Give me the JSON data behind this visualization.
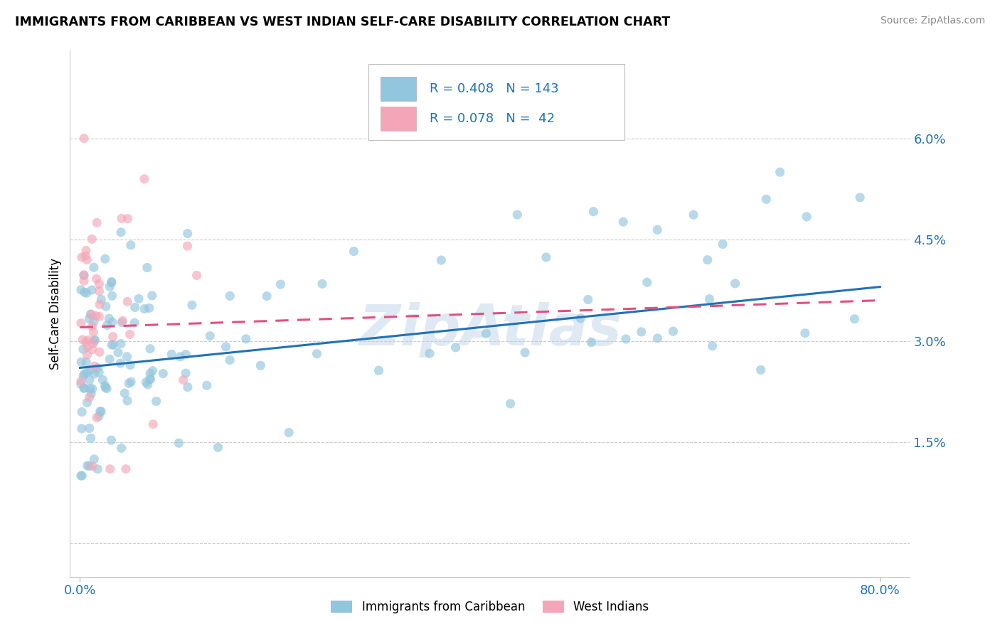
{
  "title": "IMMIGRANTS FROM CARIBBEAN VS WEST INDIAN SELF-CARE DISABILITY CORRELATION CHART",
  "source": "Source: ZipAtlas.com",
  "ylabel": "Self-Care Disability",
  "r_blue": 0.408,
  "n_blue": 143,
  "r_pink": 0.078,
  "n_pink": 42,
  "blue_color": "#92c5de",
  "pink_color": "#f4a6b8",
  "line_blue_color": "#2171b5",
  "line_pink_color": "#e05080",
  "text_color": "#2171b5",
  "watermark": "ZipAtlas",
  "ytick_vals": [
    0.0,
    0.015,
    0.03,
    0.045,
    0.06
  ],
  "ytick_labels": [
    "",
    "1.5%",
    "3.0%",
    "4.5%",
    "6.0%"
  ],
  "xtick_vals": [
    0.0,
    0.8
  ],
  "xtick_labels": [
    "0.0%",
    "80.0%"
  ],
  "xlim": [
    -0.01,
    0.83
  ],
  "ylim": [
    -0.005,
    0.073
  ],
  "blue_line_x0": 0.0,
  "blue_line_y0": 0.026,
  "blue_line_x1": 0.8,
  "blue_line_y1": 0.038,
  "pink_line_x0": 0.0,
  "pink_line_y0": 0.032,
  "pink_line_x1": 0.8,
  "pink_line_y1": 0.036
}
